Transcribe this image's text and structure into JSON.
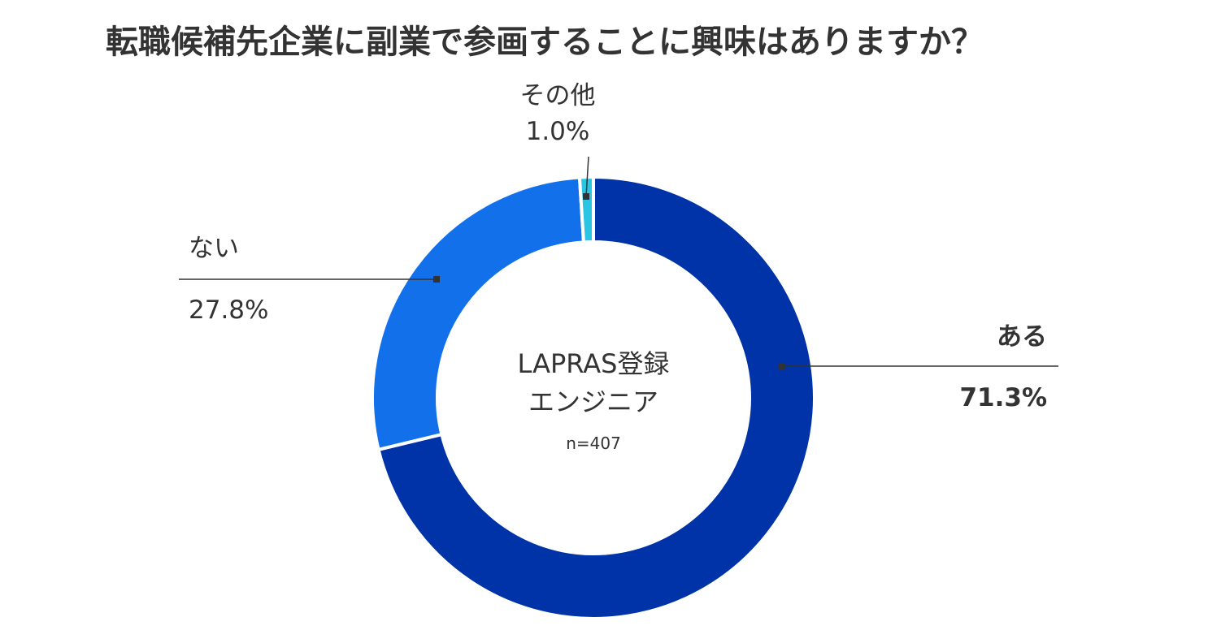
{
  "chart_data": {
    "type": "pie",
    "style": "donut",
    "title": "転職候補先企業に副業で参画することに興味はありますか？",
    "center_label_line1": "LAPRAS登録",
    "center_label_line2": "エンジニア",
    "center_note": "n=407",
    "slices": [
      {
        "label": "ある",
        "value": 71.3,
        "value_label": "71.3%",
        "color": "#0033a8",
        "emphasis": true
      },
      {
        "label": "ない",
        "value": 27.8,
        "value_label": "27.8%",
        "color": "#1170ea",
        "emphasis": false
      },
      {
        "label": "その他",
        "value": 1.0,
        "value_label": "1.0%",
        "color": "#2ac5e3",
        "emphasis": false
      }
    ],
    "legend": "none",
    "labels_position": "outside-with-leader-lines"
  }
}
